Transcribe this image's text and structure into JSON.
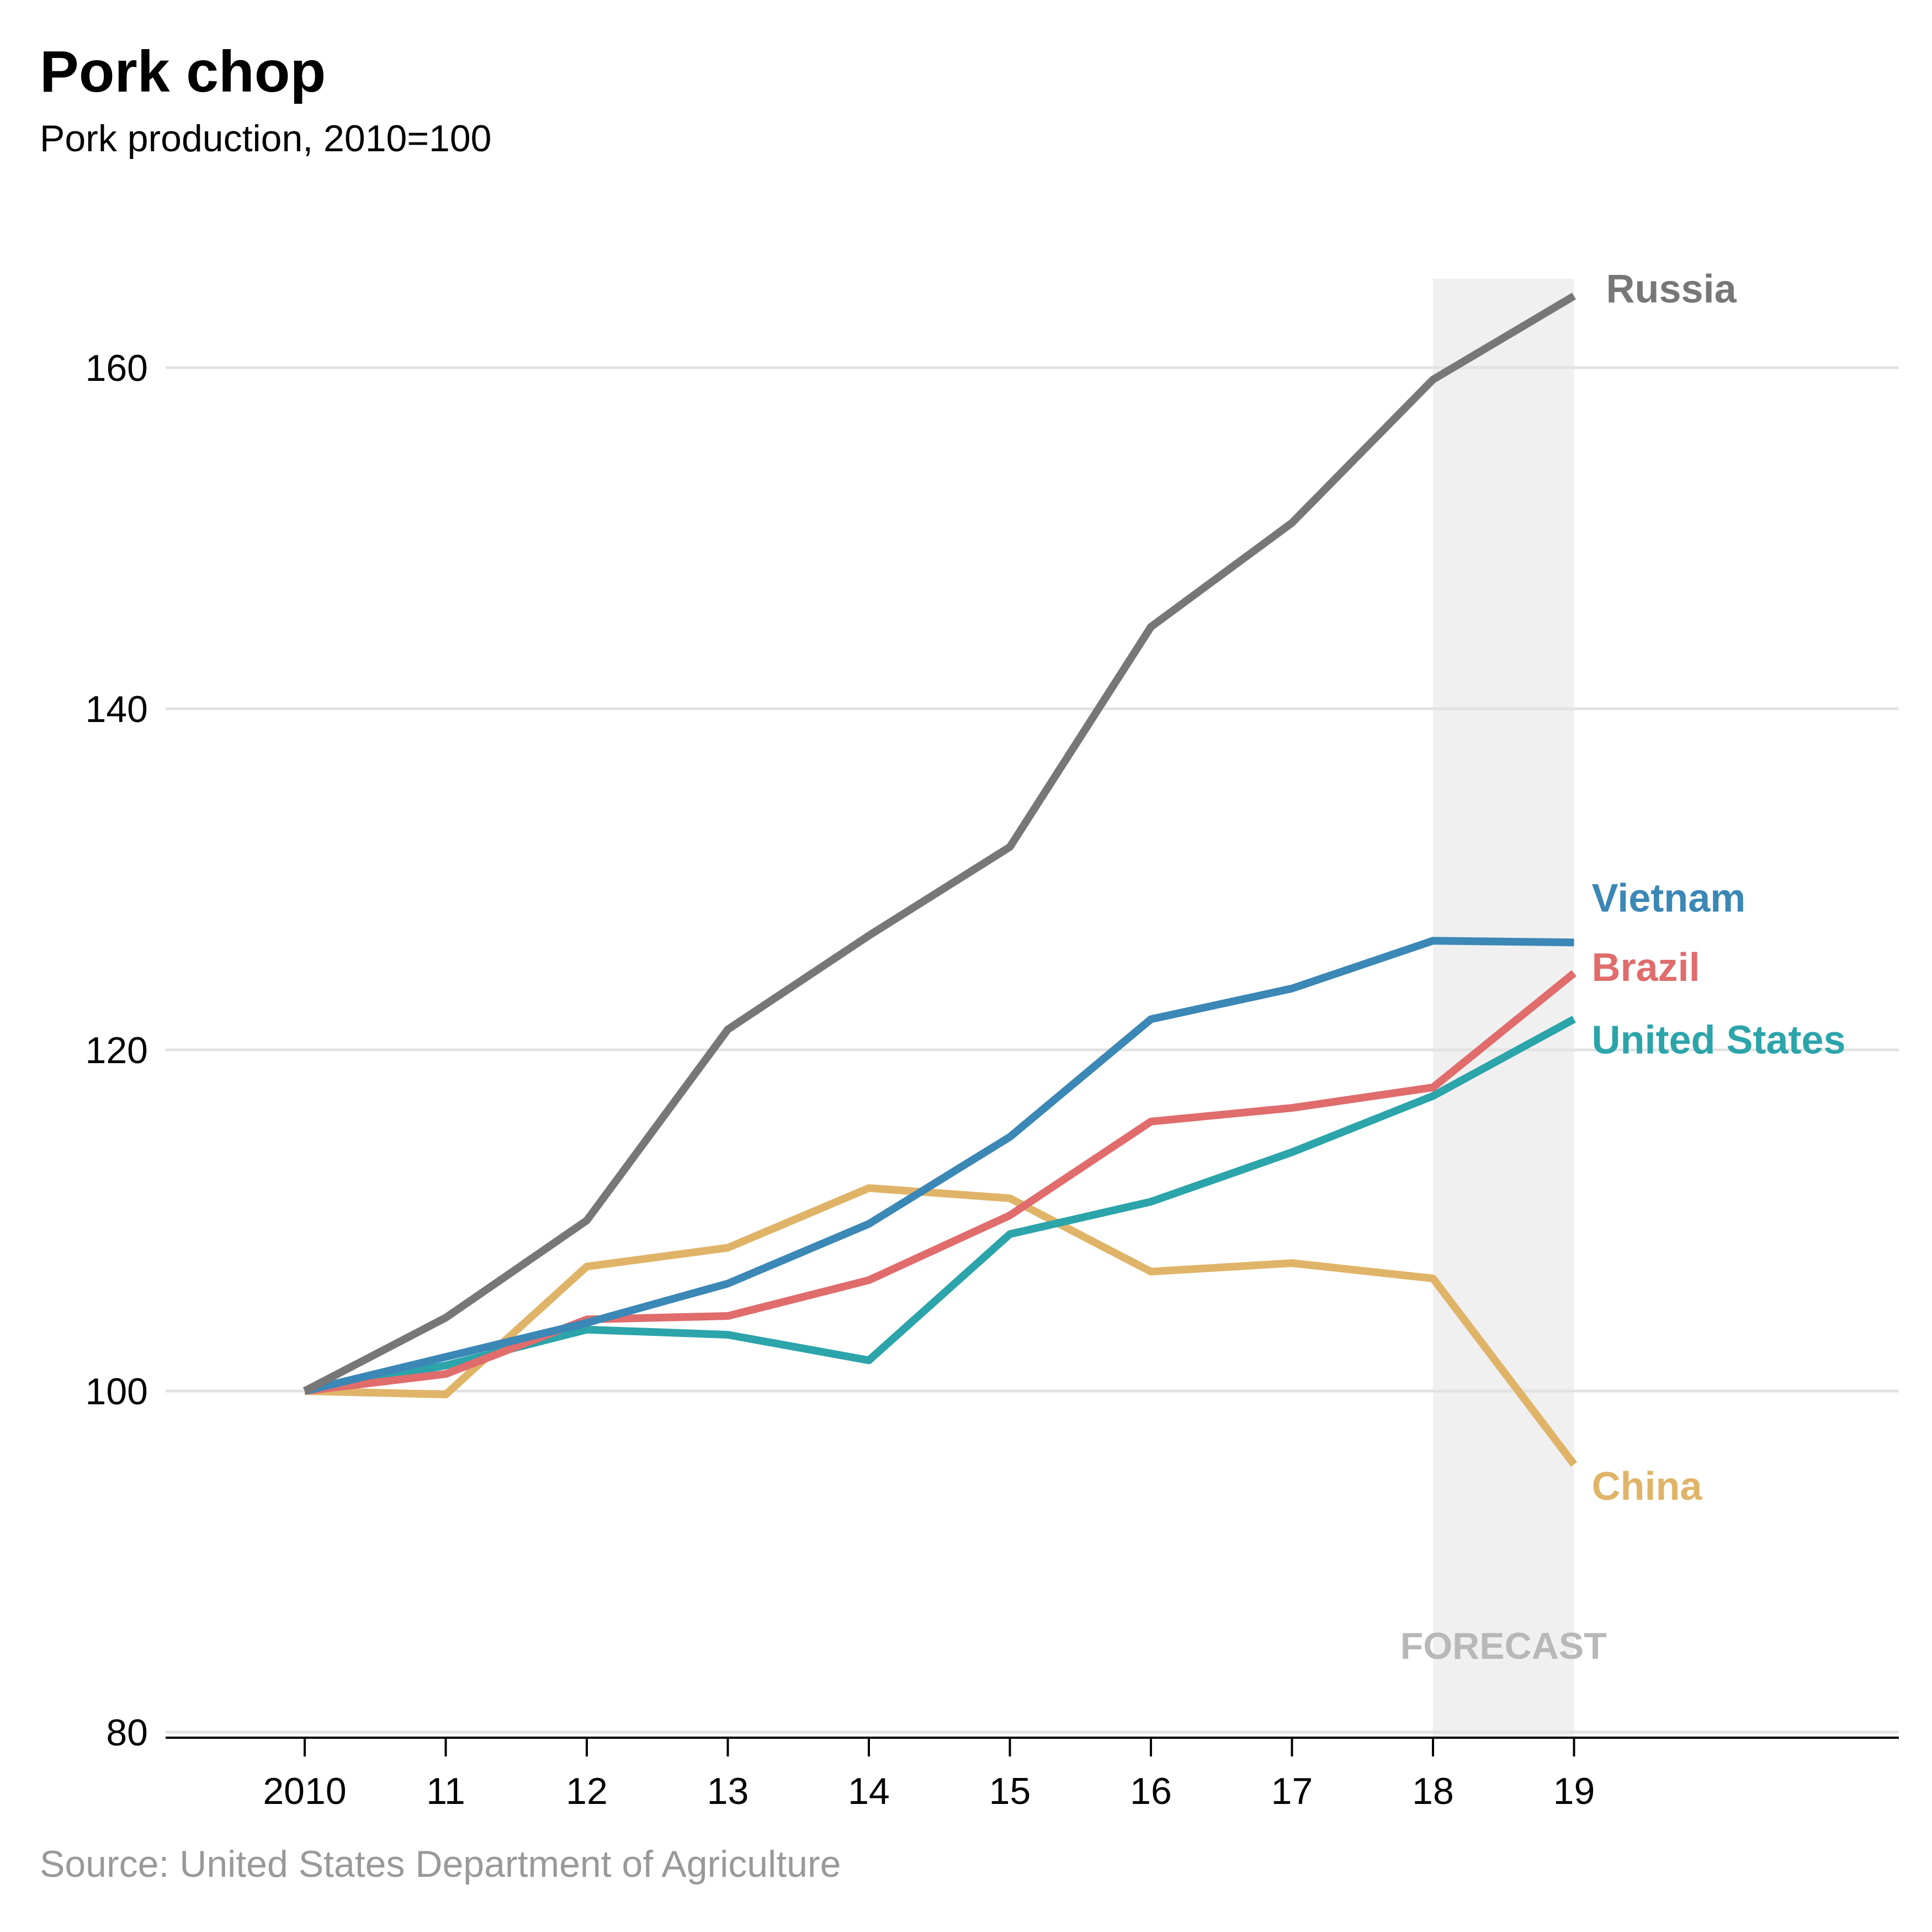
{
  "title": "Pork chop",
  "subtitle": "Pork production, 2010=100",
  "source": "Source: United States Department of Agriculture",
  "forecast_label": "FORECAST",
  "chart_data": {
    "type": "line",
    "title": "Pork chop",
    "subtitle": "Pork production, 2010=100",
    "x": [
      "2010",
      "11",
      "12",
      "13",
      "14",
      "15",
      "16",
      "17",
      "18",
      "19"
    ],
    "ylim": [
      80,
      165
    ],
    "yticks": [
      80,
      100,
      120,
      140,
      160
    ],
    "grid": true,
    "forecast_range": [
      "18",
      "19"
    ],
    "series": [
      {
        "name": "Russia",
        "color": "#777777",
        "values": [
          100,
          104.3,
          110,
          121.2,
          126.7,
          131.9,
          144.8,
          150.9,
          159.3,
          164.2
        ]
      },
      {
        "name": "Vietnam",
        "color": "#3b87b6",
        "values": [
          100,
          102,
          104,
          106.3,
          109.8,
          114.9,
          121.8,
          123.6,
          126.4,
          126.3
        ]
      },
      {
        "name": "Brazil",
        "color": "#e06c6c",
        "values": [
          100,
          101,
          104.2,
          104.4,
          106.5,
          110.3,
          115.8,
          116.6,
          117.8,
          124.5
        ]
      },
      {
        "name": "United States",
        "color": "#2ba4aa",
        "values": [
          100,
          101.5,
          103.6,
          103.3,
          101.8,
          109.2,
          111.1,
          114,
          117.3,
          121.8
        ]
      },
      {
        "name": "China",
        "color": "#e0b468",
        "values": [
          100,
          99.8,
          107.3,
          108.4,
          111.9,
          111.3,
          107,
          107.5,
          106.6,
          95.7
        ]
      }
    ]
  }
}
